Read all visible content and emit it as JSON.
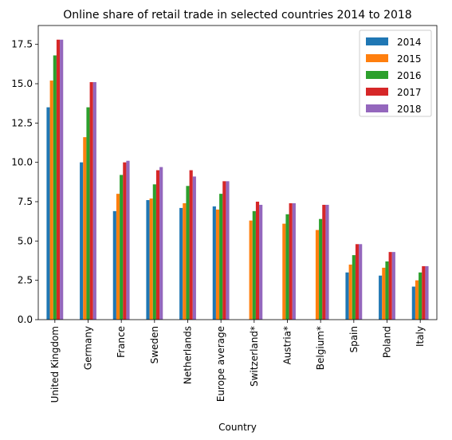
{
  "chart_data": {
    "type": "bar",
    "title": "Online share of retail trade in selected countries 2014 to 2018",
    "xlabel": "Country",
    "ylabel": "",
    "ylim": [
      0,
      18.7
    ],
    "yticks": [
      0.0,
      2.5,
      5.0,
      7.5,
      10.0,
      12.5,
      15.0,
      17.5
    ],
    "ytick_labels": [
      "0.0",
      "2.5",
      "5.0",
      "7.5",
      "10.0",
      "12.5",
      "15.0",
      "17.5"
    ],
    "grid": false,
    "legend_position": "top-right",
    "categories": [
      "United Kingdom",
      "Germany",
      "France",
      "Sweden",
      "Netherlands",
      "Europe average",
      "Switzerland*",
      "Austria*",
      "Belgium*",
      "Spain",
      "Poland",
      "Italy"
    ],
    "series": [
      {
        "name": "2014",
        "color": "#1f77b4",
        "values": [
          13.5,
          10.0,
          6.9,
          7.6,
          7.1,
          7.2,
          null,
          null,
          null,
          3.0,
          2.8,
          2.1
        ]
      },
      {
        "name": "2015",
        "color": "#ff7f0e",
        "values": [
          15.2,
          11.6,
          8.0,
          7.7,
          7.4,
          7.0,
          6.3,
          6.1,
          5.7,
          3.5,
          3.3,
          2.5
        ]
      },
      {
        "name": "2016",
        "color": "#2ca02c",
        "values": [
          16.8,
          13.5,
          9.2,
          8.6,
          8.5,
          8.0,
          6.9,
          6.7,
          6.4,
          4.1,
          3.7,
          3.0
        ]
      },
      {
        "name": "2017",
        "color": "#d62728",
        "values": [
          17.8,
          15.1,
          10.0,
          9.5,
          9.5,
          8.8,
          7.5,
          7.4,
          7.3,
          4.8,
          4.3,
          3.4
        ]
      },
      {
        "name": "2018",
        "color": "#9467bd",
        "values": [
          17.8,
          15.1,
          10.1,
          9.7,
          9.1,
          8.8,
          7.3,
          7.4,
          7.3,
          4.8,
          4.3,
          3.4
        ]
      }
    ]
  }
}
